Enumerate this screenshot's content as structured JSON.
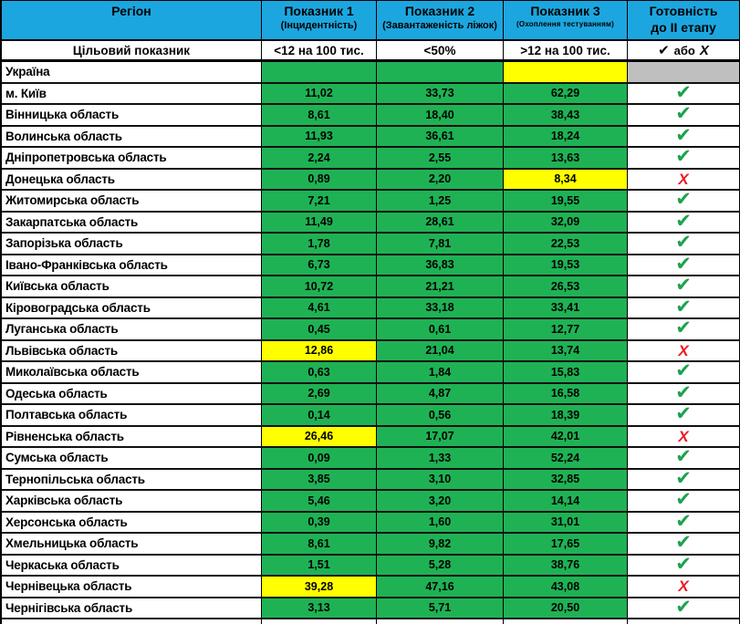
{
  "colors": {
    "header_blue": "#1CA6DF",
    "cell_green": "#1FB254",
    "cell_yellow": "#FFFF00",
    "cell_grey": "#BFBFBF",
    "check_green": "#1CA24E",
    "x_red": "#ED1C24"
  },
  "glyphs": {
    "check": "✔",
    "x": "Х"
  },
  "table": {
    "header": {
      "region": "Регіон",
      "col1_title": "Показник 1",
      "col1_sub": "(Інцидентність)",
      "col2_title": "Показник 2",
      "col2_sub": "(Завантаженість ліжок)",
      "col3_title": "Показник 3",
      "col3_sub": "(Охоплення тестуванням)",
      "col4_line1": "Готовність",
      "col4_line2": "до II етапу"
    },
    "target_row": {
      "label": "Цільовий показник",
      "col1": "<12 на 100 тис.",
      "col2": "<50%",
      "col3": ">12 на 100 тис.",
      "col4_check": "✔",
      "col4_or": "або",
      "col4_x": "Х"
    },
    "summary_row": {
      "label": "Україна",
      "cell_colors": [
        "green",
        "green",
        "yellow",
        "grey"
      ]
    },
    "rows": [
      {
        "region": "м. Київ",
        "values": [
          "11,02",
          "33,73",
          "62,29"
        ],
        "cell_colors": [
          "green",
          "green",
          "green"
        ],
        "status": "check"
      },
      {
        "region": "Вінницька область",
        "values": [
          "8,61",
          "18,40",
          "38,43"
        ],
        "cell_colors": [
          "green",
          "green",
          "green"
        ],
        "status": "check"
      },
      {
        "region": "Волинська область",
        "values": [
          "11,93",
          "36,61",
          "18,24"
        ],
        "cell_colors": [
          "green",
          "green",
          "green"
        ],
        "status": "check"
      },
      {
        "region": "Дніпропетровська область",
        "values": [
          "2,24",
          "2,55",
          "13,63"
        ],
        "cell_colors": [
          "green",
          "green",
          "green"
        ],
        "status": "check"
      },
      {
        "region": "Донецька область",
        "values": [
          "0,89",
          "2,20",
          "8,34"
        ],
        "cell_colors": [
          "green",
          "green",
          "yellow"
        ],
        "status": "x"
      },
      {
        "region": "Житомирська область",
        "values": [
          "7,21",
          "1,25",
          "19,55"
        ],
        "cell_colors": [
          "green",
          "green",
          "green"
        ],
        "status": "check"
      },
      {
        "region": "Закарпатська область",
        "values": [
          "11,49",
          "28,61",
          "32,09"
        ],
        "cell_colors": [
          "green",
          "green",
          "green"
        ],
        "status": "check"
      },
      {
        "region": "Запорізька область",
        "values": [
          "1,78",
          "7,81",
          "22,53"
        ],
        "cell_colors": [
          "green",
          "green",
          "green"
        ],
        "status": "check"
      },
      {
        "region": "Івано-Франківська область",
        "values": [
          "6,73",
          "36,83",
          "19,53"
        ],
        "cell_colors": [
          "green",
          "green",
          "green"
        ],
        "status": "check"
      },
      {
        "region": "Київська область",
        "values": [
          "10,72",
          "21,21",
          "26,53"
        ],
        "cell_colors": [
          "green",
          "green",
          "green"
        ],
        "status": "check"
      },
      {
        "region": "Кіровоградська область",
        "values": [
          "4,61",
          "33,18",
          "33,41"
        ],
        "cell_colors": [
          "green",
          "green",
          "green"
        ],
        "status": "check"
      },
      {
        "region": "Луганська область",
        "values": [
          "0,45",
          "0,61",
          "12,77"
        ],
        "cell_colors": [
          "green",
          "green",
          "green"
        ],
        "status": "check"
      },
      {
        "region": "Львівська область",
        "values": [
          "12,86",
          "21,04",
          "13,74"
        ],
        "cell_colors": [
          "yellow",
          "green",
          "green"
        ],
        "status": "x"
      },
      {
        "region": "Миколаївська область",
        "values": [
          "0,63",
          "1,84",
          "15,83"
        ],
        "cell_colors": [
          "green",
          "green",
          "green"
        ],
        "status": "check"
      },
      {
        "region": "Одеська область",
        "values": [
          "2,69",
          "4,87",
          "16,58"
        ],
        "cell_colors": [
          "green",
          "green",
          "green"
        ],
        "status": "check"
      },
      {
        "region": "Полтавська область",
        "values": [
          "0,14",
          "0,56",
          "18,39"
        ],
        "cell_colors": [
          "green",
          "green",
          "green"
        ],
        "status": "check"
      },
      {
        "region": "Рівненська область",
        "values": [
          "26,46",
          "17,07",
          "42,01"
        ],
        "cell_colors": [
          "yellow",
          "green",
          "green"
        ],
        "status": "x"
      },
      {
        "region": "Сумська область",
        "values": [
          "0,09",
          "1,33",
          "52,24"
        ],
        "cell_colors": [
          "green",
          "green",
          "green"
        ],
        "status": "check"
      },
      {
        "region": "Тернопільська область",
        "values": [
          "3,85",
          "3,10",
          "32,85"
        ],
        "cell_colors": [
          "green",
          "green",
          "green"
        ],
        "status": "check"
      },
      {
        "region": "Харківська область",
        "values": [
          "5,46",
          "3,20",
          "14,14"
        ],
        "cell_colors": [
          "green",
          "green",
          "green"
        ],
        "status": "check"
      },
      {
        "region": "Херсонська область",
        "values": [
          "0,39",
          "1,60",
          "31,01"
        ],
        "cell_colors": [
          "green",
          "green",
          "green"
        ],
        "status": "check"
      },
      {
        "region": "Хмельницька область",
        "values": [
          "8,61",
          "9,82",
          "17,65"
        ],
        "cell_colors": [
          "green",
          "green",
          "green"
        ],
        "status": "check"
      },
      {
        "region": "Черкаська область",
        "values": [
          "1,51",
          "5,28",
          "38,76"
        ],
        "cell_colors": [
          "green",
          "green",
          "green"
        ],
        "status": "check"
      },
      {
        "region": "Чернівецька область",
        "values": [
          "39,28",
          "47,16",
          "43,08"
        ],
        "cell_colors": [
          "yellow",
          "green",
          "green"
        ],
        "status": "x"
      },
      {
        "region": "Чернігівська область",
        "values": [
          "3,13",
          "5,71",
          "20,50"
        ],
        "cell_colors": [
          "green",
          "green",
          "green"
        ],
        "status": "check"
      }
    ]
  }
}
